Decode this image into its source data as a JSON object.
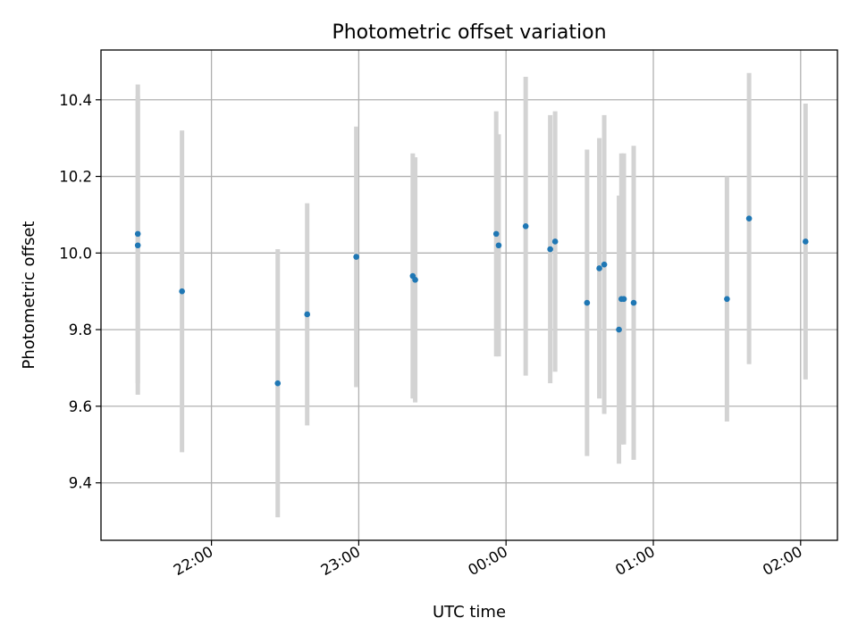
{
  "chart_data": {
    "type": "scatter",
    "title": "Photometric offset variation",
    "xlabel": "UTC time",
    "ylabel": "Photometric offset",
    "x_unit": "HH:MM UTC",
    "xlim": [
      "21:15",
      "02:15"
    ],
    "ylim": [
      9.25,
      10.53
    ],
    "x_ticks": [
      "22:00",
      "23:00",
      "00:00",
      "01:00",
      "02:00"
    ],
    "y_ticks": [
      9.4,
      9.6,
      9.8,
      10.0,
      10.2,
      10.4
    ],
    "y_tick_labels": [
      "9.4",
      "9.6",
      "9.8",
      "10.0",
      "10.2",
      "10.4"
    ],
    "grid": true,
    "legend": "none",
    "colors": {
      "marker": "#1f77b4",
      "errorbar": "#d3d3d3",
      "grid": "#b0b0b0"
    },
    "points": [
      {
        "x": "21:30",
        "y": 10.05,
        "yerr": 0.39
      },
      {
        "x": "21:30",
        "y": 10.02,
        "yerr": 0.39
      },
      {
        "x": "21:48",
        "y": 9.9,
        "yerr": 0.42
      },
      {
        "x": "22:27",
        "y": 9.66,
        "yerr": 0.35
      },
      {
        "x": "22:39",
        "y": 9.84,
        "yerr": 0.29
      },
      {
        "x": "22:59",
        "y": 9.99,
        "yerr": 0.34
      },
      {
        "x": "23:22",
        "y": 9.94,
        "yerr": 0.32
      },
      {
        "x": "23:23",
        "y": 9.93,
        "yerr": 0.32
      },
      {
        "x": "23:56",
        "y": 10.05,
        "yerr": 0.32
      },
      {
        "x": "23:57",
        "y": 10.02,
        "yerr": 0.29
      },
      {
        "x": "00:08",
        "y": 10.07,
        "yerr": 0.39
      },
      {
        "x": "00:18",
        "y": 10.01,
        "yerr": 0.35
      },
      {
        "x": "00:20",
        "y": 10.03,
        "yerr": 0.34
      },
      {
        "x": "00:33",
        "y": 9.87,
        "yerr": 0.4
      },
      {
        "x": "00:38",
        "y": 9.96,
        "yerr": 0.34
      },
      {
        "x": "00:40",
        "y": 9.97,
        "yerr": 0.39
      },
      {
        "x": "00:46",
        "y": 9.8,
        "yerr": 0.35
      },
      {
        "x": "00:47",
        "y": 9.88,
        "yerr": 0.38
      },
      {
        "x": "00:48",
        "y": 9.88,
        "yerr": 0.38
      },
      {
        "x": "00:52",
        "y": 9.87,
        "yerr": 0.41
      },
      {
        "x": "01:30",
        "y": 9.88,
        "yerr": 0.32
      },
      {
        "x": "01:39",
        "y": 10.09,
        "yerr": 0.38
      },
      {
        "x": "02:02",
        "y": 10.03,
        "yerr": 0.36
      }
    ]
  }
}
